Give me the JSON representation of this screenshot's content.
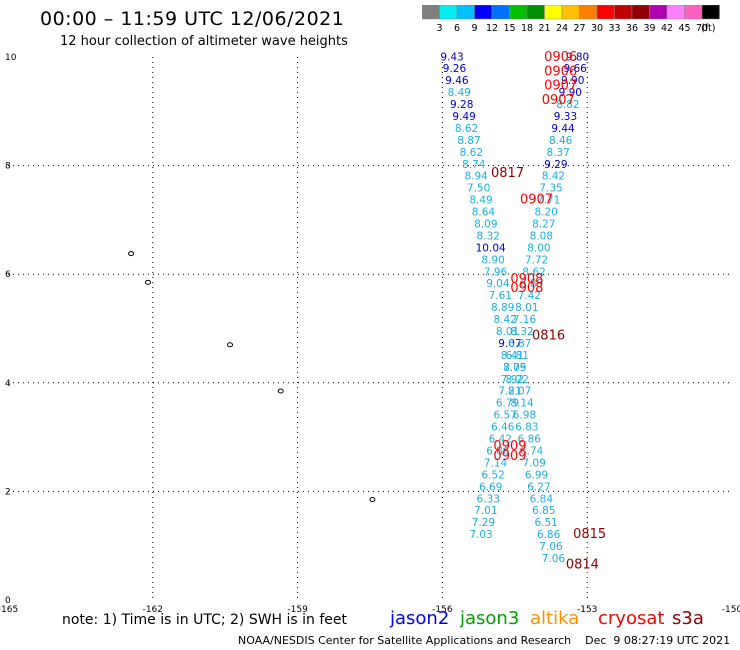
{
  "title": "00:00 – 11:59 UTC 12/06/2021",
  "subtitle": "12 hour collection of altimeter wave heights",
  "colorbar": {
    "colors": [
      "#7f7f7f",
      "#00f0f0",
      "#00c0ff",
      "#0000ff",
      "#0070ff",
      "#00c000",
      "#009000",
      "#ffff00",
      "#ffc000",
      "#ff8000",
      "#ff0000",
      "#c00000",
      "#900000",
      "#b000b0",
      "#ff80ff",
      "#ff60c0",
      "#000000"
    ],
    "labels": [
      "3",
      "6",
      "9",
      "12",
      "15",
      "18",
      "21",
      "24",
      "27",
      "30",
      "33",
      "36",
      "39",
      "42",
      "45",
      "70"
    ],
    "unit": "(ft)"
  },
  "axes": {
    "x_ticks": [
      "-165",
      "-162",
      "-159",
      "-156",
      "-153",
      "-150"
    ],
    "y_ticks": [
      "0",
      "2",
      "4",
      "6",
      "8",
      "10"
    ],
    "xlim": [
      -165,
      -150
    ],
    "ylim": [
      0,
      10
    ]
  },
  "islands": [
    {
      "lon": -162.45,
      "lat": 6.38
    },
    {
      "lon": -162.1,
      "lat": 5.85
    },
    {
      "lon": -160.4,
      "lat": 4.7
    },
    {
      "lon": -159.35,
      "lat": 3.85
    },
    {
      "lon": -157.45,
      "lat": 1.85
    }
  ],
  "observations": [
    {
      "lon": -155.8,
      "lat": 9.94,
      "text": "9.43",
      "color": "#0000cc"
    },
    {
      "lon": -155.75,
      "lat": 9.72,
      "text": "9.26",
      "color": "#0000cc"
    },
    {
      "lon": -155.7,
      "lat": 9.5,
      "text": "9.46",
      "color": "#0000cc"
    },
    {
      "lon": -155.65,
      "lat": 9.28,
      "text": "8.49",
      "color": "#1ab0e0"
    },
    {
      "lon": -155.6,
      "lat": 9.06,
      "text": "9.28",
      "color": "#0000cc"
    },
    {
      "lon": -155.55,
      "lat": 8.84,
      "text": "9.49",
      "color": "#0000cc"
    },
    {
      "lon": -155.5,
      "lat": 8.62,
      "text": "8.62",
      "color": "#1ab0e0"
    },
    {
      "lon": -155.45,
      "lat": 8.4,
      "text": "8.87",
      "color": "#1ab0e0"
    },
    {
      "lon": -155.4,
      "lat": 8.18,
      "text": "8.62",
      "color": "#1ab0e0"
    },
    {
      "lon": -155.35,
      "lat": 7.96,
      "text": "8.74",
      "color": "#1ab0e0"
    },
    {
      "lon": -155.3,
      "lat": 7.74,
      "text": "8.94",
      "color": "#1ab0e0"
    },
    {
      "lon": -155.25,
      "lat": 7.52,
      "text": "7.50",
      "color": "#1ab0e0"
    },
    {
      "lon": -155.2,
      "lat": 7.3,
      "text": "8.49",
      "color": "#1ab0e0"
    },
    {
      "lon": -155.15,
      "lat": 7.08,
      "text": "8.64",
      "color": "#1ab0e0"
    },
    {
      "lon": -155.1,
      "lat": 6.86,
      "text": "8.09",
      "color": "#1ab0e0"
    },
    {
      "lon": -155.05,
      "lat": 6.64,
      "text": "8.32",
      "color": "#1ab0e0"
    },
    {
      "lon": -155.0,
      "lat": 6.42,
      "text": "10.04",
      "color": "#0000cc"
    },
    {
      "lon": -154.95,
      "lat": 6.2,
      "text": "8.90",
      "color": "#1ab0e0"
    },
    {
      "lon": -154.9,
      "lat": 5.98,
      "text": "7.96",
      "color": "#1ab0e0"
    },
    {
      "lon": -154.85,
      "lat": 5.76,
      "text": "9.04",
      "color": "#1ab0e0"
    },
    {
      "lon": -154.8,
      "lat": 5.54,
      "text": "7.61",
      "color": "#1ab0e0"
    },
    {
      "lon": -154.75,
      "lat": 5.32,
      "text": "8.89",
      "color": "#1ab0e0"
    },
    {
      "lon": -154.7,
      "lat": 5.1,
      "text": "8.42",
      "color": "#1ab0e0"
    },
    {
      "lon": -154.65,
      "lat": 4.88,
      "text": "8.01",
      "color": "#1ab0e0"
    },
    {
      "lon": -154.6,
      "lat": 4.66,
      "text": "9.07",
      "color": "#0000cc"
    },
    {
      "lon": -154.55,
      "lat": 4.44,
      "text": "8.41",
      "color": "#1ab0e0"
    },
    {
      "lon": -154.5,
      "lat": 4.22,
      "text": "8.05",
      "color": "#1ab0e0"
    },
    {
      "lon": -154.45,
      "lat": 4.0,
      "text": "8.22",
      "color": "#1ab0e0"
    },
    {
      "lon": -154.4,
      "lat": 3.78,
      "text": "8.07",
      "color": "#1ab0e0"
    },
    {
      "lon": -154.35,
      "lat": 3.56,
      "text": "8.14",
      "color": "#1ab0e0"
    },
    {
      "lon": -154.3,
      "lat": 3.34,
      "text": "6.98",
      "color": "#1ab0e0"
    },
    {
      "lon": -154.25,
      "lat": 3.12,
      "text": "6.83",
      "color": "#1ab0e0"
    },
    {
      "lon": -154.2,
      "lat": 2.9,
      "text": "6.86",
      "color": "#1ab0e0"
    },
    {
      "lon": -154.15,
      "lat": 2.68,
      "text": "6.74",
      "color": "#1ab0e0"
    },
    {
      "lon": -154.1,
      "lat": 2.46,
      "text": "7.09",
      "color": "#1ab0e0"
    },
    {
      "lon": -154.05,
      "lat": 2.24,
      "text": "6.99",
      "color": "#1ab0e0"
    },
    {
      "lon": -154.0,
      "lat": 2.02,
      "text": "6.27",
      "color": "#1ab0e0"
    },
    {
      "lon": -153.95,
      "lat": 1.8,
      "text": "6.84",
      "color": "#1ab0e0"
    },
    {
      "lon": -153.9,
      "lat": 1.58,
      "text": "6.85",
      "color": "#1ab0e0"
    },
    {
      "lon": -153.85,
      "lat": 1.36,
      "text": "6.51",
      "color": "#1ab0e0"
    },
    {
      "lon": -153.8,
      "lat": 1.14,
      "text": "6.86",
      "color": "#1ab0e0"
    },
    {
      "lon": -153.75,
      "lat": 0.92,
      "text": "7.06",
      "color": "#1ab0e0"
    },
    {
      "lon": -153.7,
      "lat": 0.7,
      "text": "7.06",
      "color": "#1ab0e0"
    },
    {
      "lon": -153.2,
      "lat": 9.94,
      "text": "9.80",
      "color": "#0000cc"
    },
    {
      "lon": -153.25,
      "lat": 9.72,
      "text": "9.66",
      "color": "#0000cc"
    },
    {
      "lon": -153.3,
      "lat": 9.5,
      "text": "9.90",
      "color": "#0000cc"
    },
    {
      "lon": -153.35,
      "lat": 9.28,
      "text": "9.90",
      "color": "#0000cc"
    },
    {
      "lon": -153.4,
      "lat": 9.06,
      "text": "8.82",
      "color": "#1ab0e0"
    },
    {
      "lon": -153.45,
      "lat": 8.84,
      "text": "9.33",
      "color": "#0000cc"
    },
    {
      "lon": -153.5,
      "lat": 8.62,
      "text": "9.44",
      "color": "#0000cc"
    },
    {
      "lon": -153.55,
      "lat": 8.4,
      "text": "8.46",
      "color": "#1ab0e0"
    },
    {
      "lon": -153.6,
      "lat": 8.18,
      "text": "8.37",
      "color": "#1ab0e0"
    },
    {
      "lon": -153.65,
      "lat": 7.96,
      "text": "9.29",
      "color": "#0000cc"
    },
    {
      "lon": -153.7,
      "lat": 7.74,
      "text": "8.42",
      "color": "#1ab0e0"
    },
    {
      "lon": -153.75,
      "lat": 7.52,
      "text": "7.35",
      "color": "#1ab0e0"
    },
    {
      "lon": -153.8,
      "lat": 7.3,
      "text": "7.71",
      "color": "#1ab0e0"
    },
    {
      "lon": -153.85,
      "lat": 7.08,
      "text": "8.20",
      "color": "#1ab0e0"
    },
    {
      "lon": -153.9,
      "lat": 6.86,
      "text": "8.27",
      "color": "#1ab0e0"
    },
    {
      "lon": -153.95,
      "lat": 6.64,
      "text": "8.08",
      "color": "#1ab0e0"
    },
    {
      "lon": -154.0,
      "lat": 6.42,
      "text": "8.00",
      "color": "#1ab0e0"
    },
    {
      "lon": -154.05,
      "lat": 6.2,
      "text": "7.72",
      "color": "#1ab0e0"
    },
    {
      "lon": -154.1,
      "lat": 5.98,
      "text": "8.62",
      "color": "#1ab0e0"
    },
    {
      "lon": -154.15,
      "lat": 5.76,
      "text": "6.89",
      "color": "#1ab0e0"
    },
    {
      "lon": -154.2,
      "lat": 5.54,
      "text": "7.42",
      "color": "#1ab0e0"
    },
    {
      "lon": -154.25,
      "lat": 5.32,
      "text": "8.01",
      "color": "#1ab0e0"
    },
    {
      "lon": -154.3,
      "lat": 5.1,
      "text": "7.16",
      "color": "#1ab0e0"
    },
    {
      "lon": -154.35,
      "lat": 4.88,
      "text": "8.32",
      "color": "#1ab0e0"
    },
    {
      "lon": -154.4,
      "lat": 4.66,
      "text": "6.87",
      "color": "#1ab0e0"
    },
    {
      "lon": -154.45,
      "lat": 4.44,
      "text": "6.81",
      "color": "#1ab0e0"
    },
    {
      "lon": -154.5,
      "lat": 4.22,
      "text": "7.79",
      "color": "#1ab0e0"
    },
    {
      "lon": -154.55,
      "lat": 4.0,
      "text": "7.92",
      "color": "#1ab0e0"
    },
    {
      "lon": -154.6,
      "lat": 3.78,
      "text": "7.21",
      "color": "#1ab0e0"
    },
    {
      "lon": -154.65,
      "lat": 3.56,
      "text": "6.79",
      "color": "#1ab0e0"
    },
    {
      "lon": -154.7,
      "lat": 3.34,
      "text": "6.57",
      "color": "#1ab0e0"
    },
    {
      "lon": -154.75,
      "lat": 3.12,
      "text": "6.46",
      "color": "#1ab0e0"
    },
    {
      "lon": -154.8,
      "lat": 2.9,
      "text": "6.42",
      "color": "#1ab0e0"
    },
    {
      "lon": -154.85,
      "lat": 2.68,
      "text": "6.86",
      "color": "#1ab0e0"
    },
    {
      "lon": -154.9,
      "lat": 2.46,
      "text": "7.14",
      "color": "#1ab0e0"
    },
    {
      "lon": -154.95,
      "lat": 2.24,
      "text": "6.52",
      "color": "#1ab0e0"
    },
    {
      "lon": -155.0,
      "lat": 2.02,
      "text": "6.69",
      "color": "#1ab0e0"
    },
    {
      "lon": -155.05,
      "lat": 1.8,
      "text": "6.33",
      "color": "#1ab0e0"
    },
    {
      "lon": -155.1,
      "lat": 1.58,
      "text": "7.01",
      "color": "#1ab0e0"
    },
    {
      "lon": -155.15,
      "lat": 1.36,
      "text": "7.29",
      "color": "#1ab0e0"
    },
    {
      "lon": -155.2,
      "lat": 1.14,
      "text": "7.03",
      "color": "#1ab0e0"
    }
  ],
  "time_labels": [
    {
      "lon": -153.55,
      "lat": 9.93,
      "text": "0906",
      "color": "#ff0000"
    },
    {
      "lon": -153.55,
      "lat": 9.66,
      "text": "0906",
      "color": "#ff0000"
    },
    {
      "lon": -153.55,
      "lat": 9.4,
      "text": "0907",
      "color": "#ff0000"
    },
    {
      "lon": -153.6,
      "lat": 9.13,
      "text": "0907",
      "color": "#ff0000"
    },
    {
      "lon": -154.65,
      "lat": 7.79,
      "text": "0817",
      "color": "#900000"
    },
    {
      "lon": -154.05,
      "lat": 7.3,
      "text": "0907",
      "color": "#ff0000"
    },
    {
      "lon": -154.25,
      "lat": 5.84,
      "text": "0908",
      "color": "#ff0000"
    },
    {
      "lon": -154.25,
      "lat": 5.67,
      "text": "0908",
      "color": "#ff0000"
    },
    {
      "lon": -153.8,
      "lat": 4.8,
      "text": "0816",
      "color": "#900000"
    },
    {
      "lon": -154.6,
      "lat": 2.76,
      "text": "0909",
      "color": "#ff0000"
    },
    {
      "lon": -154.6,
      "lat": 2.58,
      "text": "0909",
      "color": "#ff0000"
    },
    {
      "lon": -152.95,
      "lat": 1.14,
      "text": "0815",
      "color": "#900000"
    },
    {
      "lon": -153.1,
      "lat": 0.58,
      "text": "0814",
      "color": "#900000"
    }
  ],
  "note": "note:  1) Time is in UTC;  2) SWH is in feet",
  "legend": [
    {
      "text": "jason2",
      "color": "#0000ff"
    },
    {
      "text": "jason3",
      "color": "#00a000"
    },
    {
      "text": "altika",
      "color": "#ff9000"
    },
    {
      "text": "cryosat",
      "color": "#ff0000"
    },
    {
      "text": "s3a",
      "color": "#900000"
    }
  ],
  "footer": "NOAA/NESDIS Center for Satellite Applications and Research    Dec  9 08:27:19 UTC 2021"
}
